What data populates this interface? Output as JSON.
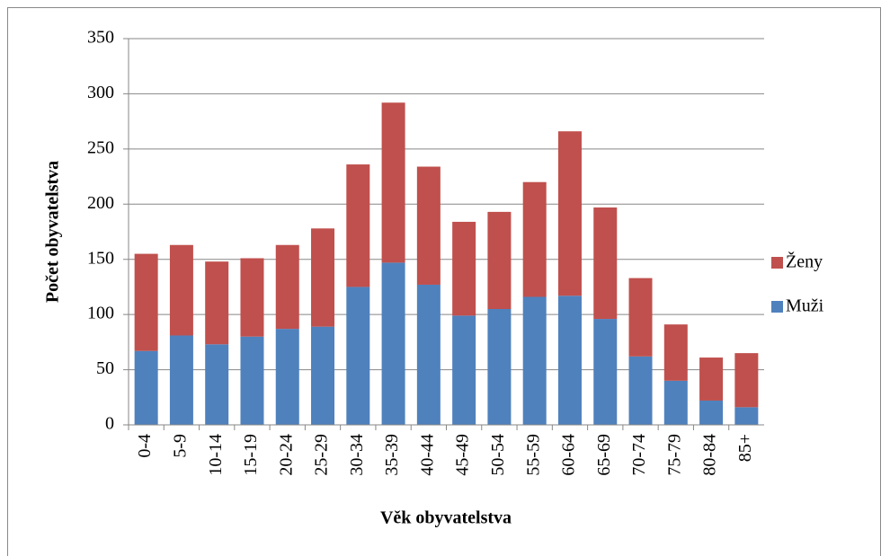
{
  "chart_data": {
    "type": "stacked_bar",
    "xlabel": "Věk obyvatelstva",
    "ylabel": "Počet obyvatelstva",
    "categories": [
      "0-4",
      "5-9",
      "10-14",
      "15-19",
      "20-24",
      "25-29",
      "30-34",
      "35-39",
      "40-44",
      "45-49",
      "50-54",
      "55-59",
      "60-64",
      "65-69",
      "70-74",
      "75-79",
      "80-84",
      "85+"
    ],
    "series": [
      {
        "name": "Muži",
        "color": "#4f81bd",
        "values": [
          67,
          81,
          73,
          80,
          87,
          89,
          125,
          147,
          127,
          99,
          105,
          116,
          117,
          96,
          62,
          40,
          22,
          16
        ]
      },
      {
        "name": "Ženy",
        "color": "#c0504d",
        "values": [
          88,
          82,
          75,
          71,
          76,
          89,
          111,
          145,
          107,
          85,
          88,
          104,
          149,
          101,
          71,
          51,
          39,
          49
        ]
      }
    ],
    "ylim": [
      0,
      350
    ],
    "yticks": [
      0,
      50,
      100,
      150,
      200,
      250,
      300,
      350
    ],
    "grid": true,
    "legend": "right"
  }
}
